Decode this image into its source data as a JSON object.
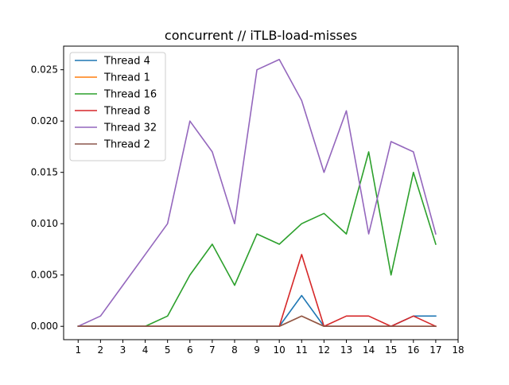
{
  "chart_data": {
    "type": "line",
    "title": "concurrent // iTLB-load-misses",
    "xlabel": "",
    "ylabel": "",
    "xlim": [
      0.35,
      18
    ],
    "ylim": [
      -0.0013,
      0.0273
    ],
    "x_ticks": [
      1,
      2,
      3,
      4,
      5,
      6,
      7,
      8,
      9,
      10,
      11,
      12,
      13,
      14,
      15,
      16,
      17,
      18
    ],
    "y_ticks": [
      0.0,
      0.005,
      0.01,
      0.015,
      0.02,
      0.025
    ],
    "y_tick_labels": [
      "0.000",
      "0.005",
      "0.010",
      "0.015",
      "0.020",
      "0.025"
    ],
    "grid": false,
    "legend_position": "top-left",
    "x": [
      1,
      2,
      3,
      4,
      5,
      6,
      7,
      8,
      9,
      10,
      11,
      12,
      13,
      14,
      15,
      16,
      17
    ],
    "series": [
      {
        "name": "Thread 4",
        "color": "#1f77b4",
        "values": [
          0,
          0,
          0,
          0,
          0,
          0,
          0,
          0,
          0,
          0,
          0.003,
          0,
          0,
          0,
          0,
          0.001,
          0.001
        ]
      },
      {
        "name": "Thread 1",
        "color": "#ff7f0e",
        "values": [
          0,
          0,
          0,
          0,
          0,
          0,
          0,
          0,
          0,
          0,
          0.001,
          0,
          0,
          0,
          0,
          0,
          0
        ]
      },
      {
        "name": "Thread 16",
        "color": "#2ca02c",
        "values": [
          0,
          0,
          0,
          0,
          0.001,
          0.005,
          0.008,
          0.004,
          0.009,
          0.008,
          0.01,
          0.011,
          0.009,
          0.017,
          0.005,
          0.015,
          0.008
        ]
      },
      {
        "name": "Thread 8",
        "color": "#d62728",
        "values": [
          0,
          0,
          0,
          0,
          0,
          0,
          0,
          0,
          0,
          0,
          0.007,
          0,
          0.001,
          0.001,
          0,
          0.001,
          0
        ]
      },
      {
        "name": "Thread 32",
        "color": "#9467bd",
        "values": [
          0,
          0.001,
          0.004,
          0.007,
          0.01,
          0.02,
          0.017,
          0.01,
          0.025,
          0.026,
          0.022,
          0.015,
          0.021,
          0.009,
          0.018,
          0.017,
          0.009
        ]
      },
      {
        "name": "Thread 2",
        "color": "#8c564b",
        "values": [
          0,
          0,
          0,
          0,
          0,
          0,
          0,
          0,
          0,
          0,
          0.001,
          0,
          0,
          0,
          0,
          0,
          0
        ]
      }
    ]
  }
}
